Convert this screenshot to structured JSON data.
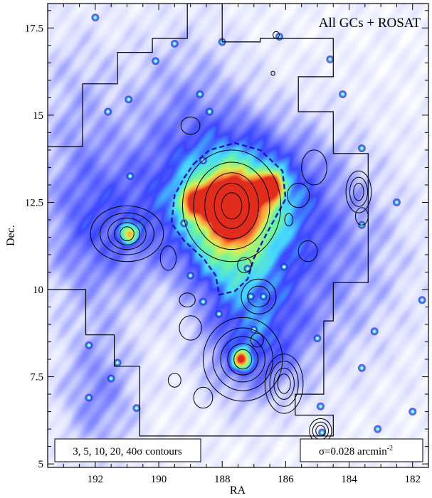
{
  "chart_data": {
    "type": "heatmap",
    "title": "All GCs + ROSAT",
    "xlabel": "RA",
    "ylabel": "Dec.",
    "xlim": [
      193.5,
      181.5
    ],
    "ylim": [
      4.9,
      18.2
    ],
    "x_ticks": [
      192,
      190,
      188,
      186,
      184,
      182
    ],
    "x_tick_labels": [
      "192",
      "190",
      "188",
      "186",
      "184",
      "182"
    ],
    "y_ticks": [
      5,
      7.5,
      10,
      12.5,
      15,
      17.5
    ],
    "y_tick_labels": [
      "5",
      "7.5",
      "10",
      "12.5",
      "15",
      "17.5"
    ],
    "contour_levels_sigma": [
      3,
      5,
      10,
      20,
      40
    ],
    "contour_note": "3, 5, 10, 20, 40σ contours",
    "smoothing_note_main": "σ=0.028 arcmin",
    "smoothing_note_sup": "-2",
    "colormap": [
      "#ffffff",
      "#dde0ff",
      "#8a90ff",
      "#3c46ff",
      "#46d7ff",
      "#6ff5a0",
      "#d8ef55",
      "#ff9a3c",
      "#e02a1d"
    ],
    "density_blobs": [
      {
        "ra": 187.7,
        "dec": 12.4,
        "amp": 1.0,
        "sx": 0.55,
        "sy": 0.55
      },
      {
        "ra": 186.5,
        "dec": 12.95,
        "amp": 0.75,
        "sx": 0.28,
        "sy": 0.28
      },
      {
        "ra": 188.9,
        "dec": 12.55,
        "amp": 0.55,
        "sx": 0.3,
        "sy": 0.3
      },
      {
        "ra": 187.6,
        "dec": 12.7,
        "amp": 0.5,
        "sx": 1.6,
        "sy": 1.4
      },
      {
        "ra": 187.8,
        "dec": 11.2,
        "amp": 0.3,
        "sx": 0.9,
        "sy": 1.2
      },
      {
        "ra": 187.4,
        "dec": 8.0,
        "amp": 0.7,
        "sx": 0.18,
        "sy": 0.18
      },
      {
        "ra": 187.2,
        "dec": 8.3,
        "amp": 0.22,
        "sx": 1.1,
        "sy": 1.1
      },
      {
        "ra": 190.95,
        "dec": 11.6,
        "amp": 0.5,
        "sx": 0.18,
        "sy": 0.18
      },
      {
        "ra": 190.8,
        "dec": 11.9,
        "amp": 0.18,
        "sx": 1.2,
        "sy": 1.6
      },
      {
        "ra": 191.9,
        "dec": 7.0,
        "amp": 0.2,
        "sx": 0.9,
        "sy": 1.4
      },
      {
        "ra": 192.5,
        "dec": 12.0,
        "amp": 0.2,
        "sx": 1.0,
        "sy": 1.8
      },
      {
        "ra": 189.2,
        "dec": 15.5,
        "amp": 0.15,
        "sx": 1.4,
        "sy": 1.6
      },
      {
        "ra": 186.3,
        "dec": 9.4,
        "amp": 0.15,
        "sx": 1.4,
        "sy": 1.6
      },
      {
        "ra": 185.0,
        "dec": 12.0,
        "amp": 0.12,
        "sx": 1.5,
        "sy": 2.0
      },
      {
        "ra": 192.7,
        "dec": 15.8,
        "amp": 0.1,
        "sx": 1.0,
        "sy": 1.5
      },
      {
        "ra": 183.3,
        "dec": 10.5,
        "amp": 0.08,
        "sx": 1.4,
        "sy": 2.2
      }
    ],
    "point_sources": [
      {
        "ra": 189.5,
        "dec": 17.05
      },
      {
        "ra": 188.0,
        "dec": 17.1
      },
      {
        "ra": 186.2,
        "dec": 17.25
      },
      {
        "ra": 184.6,
        "dec": 16.6
      },
      {
        "ra": 190.1,
        "dec": 16.55
      },
      {
        "ra": 188.7,
        "dec": 15.6
      },
      {
        "ra": 190.95,
        "dec": 15.45
      },
      {
        "ra": 188.4,
        "dec": 15.1
      },
      {
        "ra": 183.6,
        "dec": 14.05
      },
      {
        "ra": 190.9,
        "dec": 13.25
      },
      {
        "ra": 183.6,
        "dec": 11.85
      },
      {
        "ra": 189.2,
        "dec": 11.9
      },
      {
        "ra": 187.2,
        "dec": 10.6
      },
      {
        "ra": 186.05,
        "dec": 10.65
      },
      {
        "ra": 189.0,
        "dec": 10.4
      },
      {
        "ra": 188.6,
        "dec": 9.65
      },
      {
        "ra": 187.1,
        "dec": 9.8
      },
      {
        "ra": 188.1,
        "dec": 9.3
      },
      {
        "ra": 187.0,
        "dec": 8.85
      },
      {
        "ra": 185.0,
        "dec": 8.6
      },
      {
        "ra": 183.2,
        "dec": 8.8
      },
      {
        "ra": 183.6,
        "dec": 7.75
      },
      {
        "ra": 191.3,
        "dec": 7.9
      },
      {
        "ra": 191.5,
        "dec": 7.45
      },
      {
        "ra": 192.2,
        "dec": 6.9
      },
      {
        "ra": 190.7,
        "dec": 6.6
      },
      {
        "ra": 184.9,
        "dec": 6.65
      },
      {
        "ra": 184.85,
        "dec": 5.9
      },
      {
        "ra": 183.1,
        "dec": 6.0
      },
      {
        "ra": 182.0,
        "dec": 6.5
      },
      {
        "ra": 181.7,
        "dec": 9.7
      },
      {
        "ra": 182.5,
        "dec": 12.5
      },
      {
        "ra": 192.0,
        "dec": 17.8
      },
      {
        "ra": 188.6,
        "dec": 13.7
      },
      {
        "ra": 184.2,
        "dec": 15.6
      },
      {
        "ra": 191.6,
        "dec": 15.1
      },
      {
        "ra": 186.7,
        "dec": 9.8
      },
      {
        "ra": 192.2,
        "dec": 8.4
      }
    ],
    "survey_footprint": [
      [
        193.5,
        14.1
      ],
      [
        192.4,
        14.1
      ],
      [
        192.4,
        15.9
      ],
      [
        191.3,
        15.9
      ],
      [
        191.3,
        16.8
      ],
      [
        190.2,
        16.8
      ],
      [
        190.2,
        17.2
      ],
      [
        189.1,
        17.2
      ],
      [
        189.1,
        18.2
      ],
      [
        188.0,
        18.2
      ],
      [
        188.0,
        17.1
      ],
      [
        186.8,
        17.1
      ],
      [
        186.8,
        17.2
      ],
      [
        184.5,
        17.2
      ],
      [
        184.5,
        16.1
      ],
      [
        185.6,
        16.1
      ],
      [
        185.6,
        15.1
      ],
      [
        184.5,
        15.1
      ],
      [
        184.5,
        13.9
      ],
      [
        183.4,
        13.9
      ],
      [
        183.4,
        10.2
      ],
      [
        184.5,
        10.2
      ],
      [
        184.5,
        9.1
      ],
      [
        184.8,
        9.1
      ],
      [
        184.8,
        7.0
      ],
      [
        185.7,
        7.0
      ],
      [
        185.7,
        6.4
      ],
      [
        184.5,
        6.4
      ],
      [
        184.5,
        5.8
      ],
      [
        190.6,
        5.8
      ],
      [
        190.6,
        7.8
      ],
      [
        191.4,
        7.8
      ],
      [
        191.4,
        8.7
      ],
      [
        192.3,
        8.7
      ],
      [
        192.3,
        10.0
      ],
      [
        193.5,
        10.0
      ]
    ],
    "dashed_contour": [
      [
        188.9,
        13.6
      ],
      [
        188.4,
        14.0
      ],
      [
        187.6,
        14.2
      ],
      [
        186.8,
        14.0
      ],
      [
        186.1,
        13.4
      ],
      [
        186.0,
        12.6
      ],
      [
        186.6,
        11.6
      ],
      [
        187.0,
        10.9
      ],
      [
        187.2,
        10.3
      ],
      [
        187.6,
        9.95
      ],
      [
        188.1,
        9.85
      ],
      [
        188.2,
        10.4
      ],
      [
        188.6,
        10.9
      ],
      [
        189.2,
        11.4
      ],
      [
        189.6,
        11.9
      ],
      [
        189.5,
        12.7
      ],
      [
        189.2,
        13.2
      ]
    ],
    "xray_contours": [
      {
        "ra": 187.7,
        "dec": 12.4,
        "rx": [
          1.55,
          1.2,
          0.85,
          0.55,
          0.32
        ],
        "ry": [
          1.6,
          1.25,
          0.95,
          0.65,
          0.38
        ]
      },
      {
        "ra": 191.0,
        "dec": 11.6,
        "rx": [
          1.15,
          0.85,
          0.6,
          0.4,
          0.22
        ],
        "ry": [
          0.8,
          0.6,
          0.45,
          0.32,
          0.2
        ]
      },
      {
        "ra": 187.35,
        "dec": 8.0,
        "rx": [
          1.25,
          0.95,
          0.7,
          0.48,
          0.28
        ],
        "ry": [
          1.2,
          0.9,
          0.65,
          0.45,
          0.28
        ]
      },
      {
        "ra": 186.05,
        "dec": 7.3,
        "rx": [
          0.6,
          0.45,
          0.32,
          0.2
        ],
        "ry": [
          0.85,
          0.65,
          0.45,
          0.28
        ]
      },
      {
        "ra": 184.9,
        "dec": 5.95,
        "rx": [
          0.35,
          0.25,
          0.15
        ],
        "ry": [
          0.35,
          0.25,
          0.15
        ]
      },
      {
        "ra": 186.85,
        "dec": 9.8,
        "rx": [
          0.55,
          0.35
        ],
        "ry": [
          0.5,
          0.3
        ]
      },
      {
        "ra": 183.7,
        "dec": 12.8,
        "rx": [
          0.4,
          0.28,
          0.16
        ],
        "ry": [
          0.6,
          0.42,
          0.25
        ]
      },
      {
        "ra": 185.6,
        "dec": 12.7,
        "rx": [
          0.35
        ],
        "ry": [
          0.35
        ]
      },
      {
        "ra": 185.1,
        "dec": 13.5,
        "rx": [
          0.4
        ],
        "ry": [
          0.5
        ]
      },
      {
        "ra": 189.0,
        "dec": 14.7,
        "rx": [
          0.3
        ],
        "ry": [
          0.25
        ]
      },
      {
        "ra": 183.6,
        "dec": 12.1,
        "rx": [
          0.2
        ],
        "ry": [
          0.25
        ]
      },
      {
        "ra": 189.7,
        "dec": 10.9,
        "rx": [
          0.25
        ],
        "ry": [
          0.35
        ]
      },
      {
        "ra": 189.1,
        "dec": 9.7,
        "rx": [
          0.25
        ],
        "ry": [
          0.2
        ]
      },
      {
        "ra": 189.5,
        "dec": 7.4,
        "rx": [
          0.2
        ],
        "ry": [
          0.2
        ]
      },
      {
        "ra": 185.3,
        "dec": 11.1,
        "rx": [
          0.3
        ],
        "ry": [
          0.3
        ]
      },
      {
        "ra": 189.0,
        "dec": 8.9,
        "rx": [
          0.35
        ],
        "ry": [
          0.35
        ]
      },
      {
        "ra": 188.6,
        "dec": 6.9,
        "rx": [
          0.3
        ],
        "ry": [
          0.3
        ]
      },
      {
        "ra": 186.3,
        "dec": 17.3,
        "rx": [
          0.1
        ],
        "ry": [
          0.1
        ]
      },
      {
        "ra": 186.4,
        "dec": 16.2,
        "rx": [
          0.06
        ],
        "ry": [
          0.06
        ]
      },
      {
        "ra": 185.9,
        "dec": 12.0,
        "rx": [
          0.13
        ],
        "ry": [
          0.18
        ]
      },
      {
        "ra": 187.3,
        "dec": 10.7,
        "rx": [
          0.22
        ],
        "ry": [
          0.22
        ]
      },
      {
        "ra": 186.9,
        "dec": 8.55,
        "rx": [
          0.2
        ],
        "ry": [
          0.2
        ]
      }
    ]
  }
}
